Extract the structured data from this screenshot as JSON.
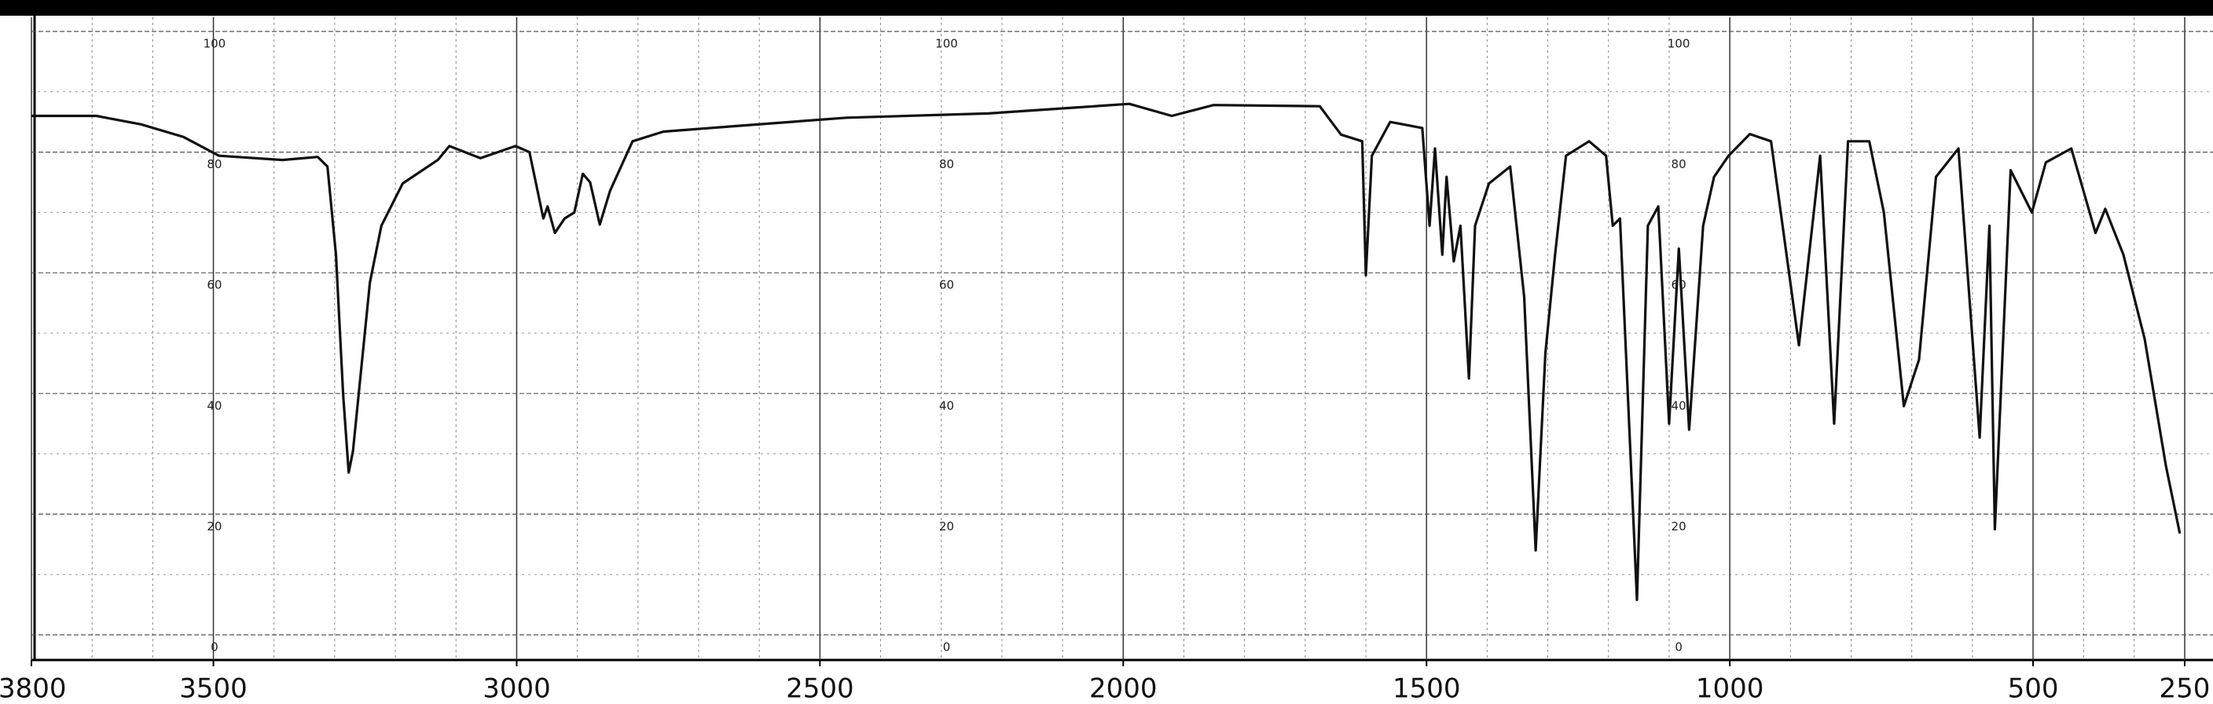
{
  "chart_data": {
    "type": "line",
    "x": [
      3800,
      3693,
      3619,
      3549,
      3491,
      3386,
      3328,
      3312,
      3298,
      3286,
      3277,
      3270,
      3256,
      3242,
      3223,
      3188,
      3130,
      3111,
      3060,
      3002,
      2979,
      2956,
      2949,
      2937,
      2921,
      2905,
      2891,
      2879,
      2863,
      2846,
      2809,
      2758,
      2642,
      2456,
      2223,
      1990,
      1920,
      1851,
      1676,
      1641,
      1606,
      1600,
      1590,
      1560,
      1507,
      1495,
      1486,
      1474,
      1467,
      1455,
      1444,
      1430,
      1420,
      1397,
      1362,
      1339,
      1320,
      1304,
      1288,
      1270,
      1232,
      1204,
      1193,
      1181,
      1153,
      1135,
      1118,
      1100,
      1084,
      1067,
      1044,
      1026,
      1002,
      967,
      932,
      916,
      886,
      851,
      828,
      805,
      770,
      746,
      713,
      688,
      660,
      623,
      588,
      572,
      563,
      537,
      502,
      479,
      437,
      397,
      381,
      351,
      316,
      281,
      258
    ],
    "values": [
      86,
      86,
      84.6,
      82.5,
      79.4,
      78.7,
      79.2,
      77.6,
      63,
      39.7,
      26.9,
      30.4,
      44.4,
      58.4,
      67.8,
      74.8,
      78.7,
      81,
      79,
      81,
      80,
      69,
      71,
      66.6,
      69,
      70,
      76.4,
      75,
      68,
      73.6,
      81.8,
      83.4,
      84.3,
      85.7,
      86.4,
      88,
      86,
      87.8,
      87.6,
      82.9,
      81.8,
      59.6,
      79.4,
      85,
      84,
      67.8,
      80.6,
      63,
      75.9,
      61.9,
      67.8,
      42.5,
      67.8,
      74.8,
      77.6,
      56,
      14,
      46.7,
      63,
      79.4,
      81.8,
      79.4,
      67.8,
      69,
      5.8,
      67.8,
      71,
      35,
      64,
      34,
      67.8,
      75.9,
      79.4,
      83,
      81.8,
      70,
      48,
      79.4,
      35,
      81.8,
      81.8,
      70,
      37.9,
      45.6,
      75.9,
      80.6,
      32.7,
      67.8,
      17.5,
      77,
      70,
      78.3,
      80.6,
      66.6,
      70.6,
      63,
      49,
      28,
      16.8
    ],
    "color": "#111111",
    "xlim": [
      3800,
      250
    ],
    "xticks": [
      3800,
      3500,
      3000,
      2500,
      2000,
      1500,
      1000,
      500,
      250
    ],
    "ylim": [
      0,
      100
    ],
    "yticks": [
      0,
      20,
      40,
      60,
      80,
      100
    ],
    "grid": true
  }
}
